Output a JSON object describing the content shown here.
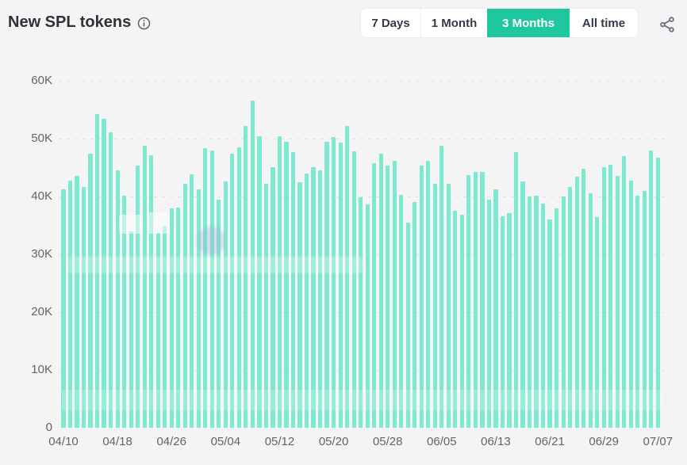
{
  "header": {
    "title": "New SPL tokens",
    "info_icon": "info-icon"
  },
  "tabs": [
    {
      "label": "7 Days",
      "active": false
    },
    {
      "label": "1 Month",
      "active": false
    },
    {
      "label": "3 Months",
      "active": true
    },
    {
      "label": "All time",
      "active": false
    }
  ],
  "share_icon": "share-icon",
  "colors": {
    "accent_active_tab": "#1ec79e",
    "bar": "#7ce9d0",
    "background": "#f4f4f5",
    "axis_text": "#616468",
    "title_text": "#2d3138"
  },
  "chart_data": {
    "type": "bar",
    "title": "New SPL tokens",
    "xlabel": "",
    "ylabel": "",
    "ylim": [
      0,
      60000
    ],
    "grid": "dashed horizontal",
    "legend": "none",
    "y_tick_labels": [
      "0",
      "10K",
      "20K",
      "30K",
      "40K",
      "50K",
      "60K"
    ],
    "y_tick_values": [
      0,
      10000,
      20000,
      30000,
      40000,
      50000,
      60000
    ],
    "x_tick_labels": [
      "04/10",
      "04/18",
      "04/26",
      "05/04",
      "05/12",
      "05/20",
      "05/28",
      "06/05",
      "06/13",
      "06/21",
      "06/29",
      "07/07"
    ],
    "x_tick_every": 8,
    "dates": [
      "04/10",
      "04/11",
      "04/12",
      "04/13",
      "04/14",
      "04/15",
      "04/16",
      "04/17",
      "04/18",
      "04/19",
      "04/20",
      "04/21",
      "04/22",
      "04/23",
      "04/24",
      "04/25",
      "04/26",
      "04/27",
      "04/28",
      "04/29",
      "04/30",
      "05/01",
      "05/02",
      "05/03",
      "05/04",
      "05/05",
      "05/06",
      "05/07",
      "05/08",
      "05/09",
      "05/10",
      "05/11",
      "05/12",
      "05/13",
      "05/14",
      "05/15",
      "05/16",
      "05/17",
      "05/18",
      "05/19",
      "05/20",
      "05/21",
      "05/22",
      "05/23",
      "05/24",
      "05/25",
      "05/26",
      "05/27",
      "05/28",
      "05/29",
      "05/30",
      "05/31",
      "06/01",
      "06/02",
      "06/03",
      "06/04",
      "06/05",
      "06/06",
      "06/07",
      "06/08",
      "06/09",
      "06/10",
      "06/11",
      "06/12",
      "06/13",
      "06/14",
      "06/15",
      "06/16",
      "06/17",
      "06/18",
      "06/19",
      "06/20",
      "06/21",
      "06/22",
      "06/23",
      "06/24",
      "06/25",
      "06/26",
      "06/27",
      "06/28",
      "06/29",
      "06/30",
      "07/01",
      "07/02",
      "07/03",
      "07/04",
      "07/05",
      "07/06",
      "07/07"
    ],
    "values": [
      41200,
      42700,
      43500,
      41700,
      47400,
      54200,
      53400,
      51100,
      44500,
      40200,
      34000,
      45400,
      48800,
      47100,
      33700,
      34900,
      37900,
      38100,
      42200,
      43800,
      41300,
      48400,
      48000,
      39500,
      42600,
      47400,
      48500,
      52200,
      56600,
      50400,
      42200,
      45100,
      50400,
      49500,
      47700,
      42400,
      44000,
      45100,
      44500,
      49500,
      50300,
      49300,
      52200,
      47800,
      39900,
      38600,
      45800,
      47400,
      45400,
      46200,
      40300,
      35500,
      39000,
      45300,
      46100,
      42200,
      48700,
      42200,
      37500,
      36900,
      43700,
      44200,
      44300,
      39400,
      41300,
      36600,
      37100,
      47700,
      42600,
      40000,
      40200,
      38700,
      36000,
      37900,
      40000,
      41600,
      43400,
      44800,
      40600,
      36400,
      45100,
      45500,
      43600,
      47000,
      42700,
      40100,
      40900,
      48000,
      46700
    ]
  }
}
